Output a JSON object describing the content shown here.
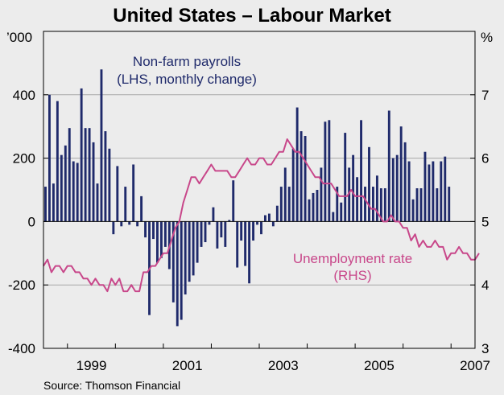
{
  "chart_data": {
    "type": "bar+line",
    "title": "United States – Labour Market",
    "source": "Source: Thomson Financial",
    "left_axis": {
      "unit_label": "’000",
      "min": -400,
      "max": 600,
      "ticks": [
        400,
        200,
        0,
        -200,
        -400
      ],
      "tick_labels": [
        "400",
        "200",
        "0",
        "-200",
        "-400"
      ]
    },
    "right_axis": {
      "unit_label": "%",
      "min": 3,
      "max": 8,
      "ticks": [
        7,
        6,
        5,
        4,
        3
      ],
      "tick_labels": [
        "7",
        "6",
        "5",
        "4",
        "3"
      ]
    },
    "x_axis": {
      "start": 1998.5,
      "end": 2007.5,
      "year_ticks": [
        1999,
        2000,
        2001,
        2002,
        2003,
        2004,
        2005,
        2006,
        2007
      ],
      "labels": [
        {
          "year": 1999,
          "text": "1999"
        },
        {
          "year": 2001,
          "text": "2001"
        },
        {
          "year": 2003,
          "text": "2003"
        },
        {
          "year": 2005,
          "text": "2005"
        },
        {
          "year": 2007,
          "text": "2007"
        }
      ]
    },
    "gridlines": true,
    "series": [
      {
        "name": "Non-farm payrolls",
        "label_line1": "Non-farm payrolls",
        "label_line2": "(LHS, monthly change)",
        "axis": "left",
        "type": "bar",
        "color": "#1f2a6b",
        "start": 1998.5,
        "step_months": 1,
        "values": [
          110,
          400,
          120,
          380,
          210,
          240,
          295,
          190,
          185,
          420,
          295,
          295,
          250,
          120,
          480,
          285,
          230,
          -40,
          175,
          -15,
          110,
          -10,
          180,
          -15,
          80,
          -50,
          -295,
          -55,
          -130,
          -115,
          -80,
          -150,
          -255,
          -330,
          -310,
          -230,
          -190,
          -170,
          -130,
          -80,
          -65,
          -10,
          45,
          -85,
          -50,
          -80,
          5,
          130,
          -145,
          -60,
          -140,
          -195,
          -60,
          -10,
          -40,
          20,
          25,
          -15,
          50,
          110,
          170,
          110,
          230,
          360,
          285,
          270,
          70,
          90,
          100,
          170,
          315,
          320,
          30,
          110,
          60,
          280,
          170,
          210,
          140,
          320,
          110,
          235,
          110,
          145,
          105,
          105,
          350,
          200,
          210,
          300,
          250,
          190,
          70,
          105,
          105,
          220,
          180,
          190,
          105,
          190,
          205,
          110
        ],
        "label_color": "#1f2a6b"
      },
      {
        "name": "Unemployment rate",
        "label_line1": "Unemployment rate",
        "label_line2": "(RHS)",
        "axis": "right",
        "type": "line",
        "color": "#c8478a",
        "start": 1998.5,
        "step_months": 1,
        "values": [
          4.3,
          4.4,
          4.2,
          4.3,
          4.3,
          4.2,
          4.3,
          4.3,
          4.2,
          4.2,
          4.1,
          4.1,
          4.0,
          4.1,
          4.0,
          4.0,
          3.9,
          4.1,
          4.0,
          4.1,
          3.9,
          3.9,
          4.0,
          3.9,
          3.9,
          4.2,
          4.2,
          4.3,
          4.3,
          4.4,
          4.5,
          4.5,
          4.7,
          4.9,
          5.0,
          5.3,
          5.5,
          5.7,
          5.7,
          5.6,
          5.7,
          5.8,
          5.9,
          5.8,
          5.8,
          5.8,
          5.8,
          5.7,
          5.7,
          5.8,
          5.9,
          6.0,
          5.9,
          5.9,
          6.0,
          6.0,
          5.9,
          5.9,
          6.0,
          6.1,
          6.1,
          6.3,
          6.2,
          6.1,
          6.1,
          6.0,
          5.9,
          5.8,
          5.7,
          5.7,
          5.6,
          5.6,
          5.6,
          5.5,
          5.4,
          5.4,
          5.4,
          5.5,
          5.4,
          5.4,
          5.4,
          5.3,
          5.2,
          5.2,
          5.1,
          5.0,
          5.0,
          5.1,
          5.0,
          5.0,
          4.9,
          4.9,
          4.7,
          4.8,
          4.6,
          4.7,
          4.6,
          4.6,
          4.7,
          4.6,
          4.6,
          4.4,
          4.5,
          4.5,
          4.6,
          4.5,
          4.5,
          4.4,
          4.4,
          4.5
        ],
        "label_color": "#c8478a"
      }
    ]
  }
}
